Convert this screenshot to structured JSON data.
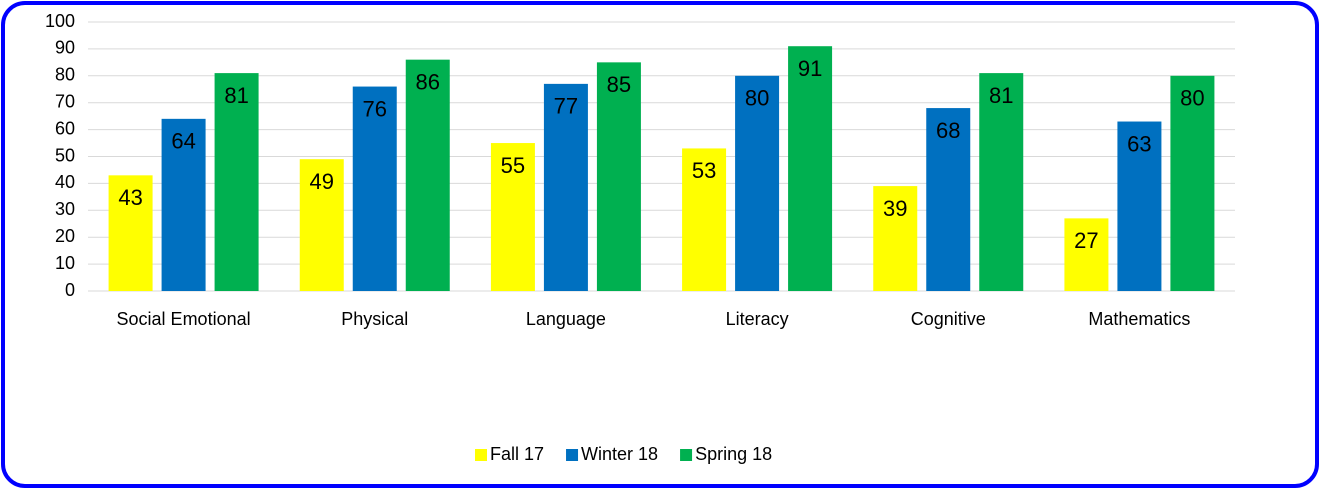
{
  "chart_data": {
    "type": "bar",
    "categories": [
      "Social Emotional",
      "Physical",
      "Language",
      "Literacy",
      "Cognitive",
      "Mathematics"
    ],
    "series": [
      {
        "name": "Fall 17",
        "color": "#ffff00",
        "values": [
          43,
          49,
          55,
          53,
          39,
          27
        ]
      },
      {
        "name": "Winter 18",
        "color": "#0070c0",
        "values": [
          64,
          76,
          77,
          80,
          68,
          63
        ]
      },
      {
        "name": "Spring 18",
        "color": "#00b050",
        "values": [
          81,
          86,
          85,
          91,
          81,
          80
        ]
      }
    ],
    "ylim": [
      0,
      100
    ],
    "yticks": [
      0,
      10,
      20,
      30,
      40,
      50,
      60,
      70,
      80,
      90,
      100
    ],
    "grid": true,
    "legend": "bottom"
  }
}
